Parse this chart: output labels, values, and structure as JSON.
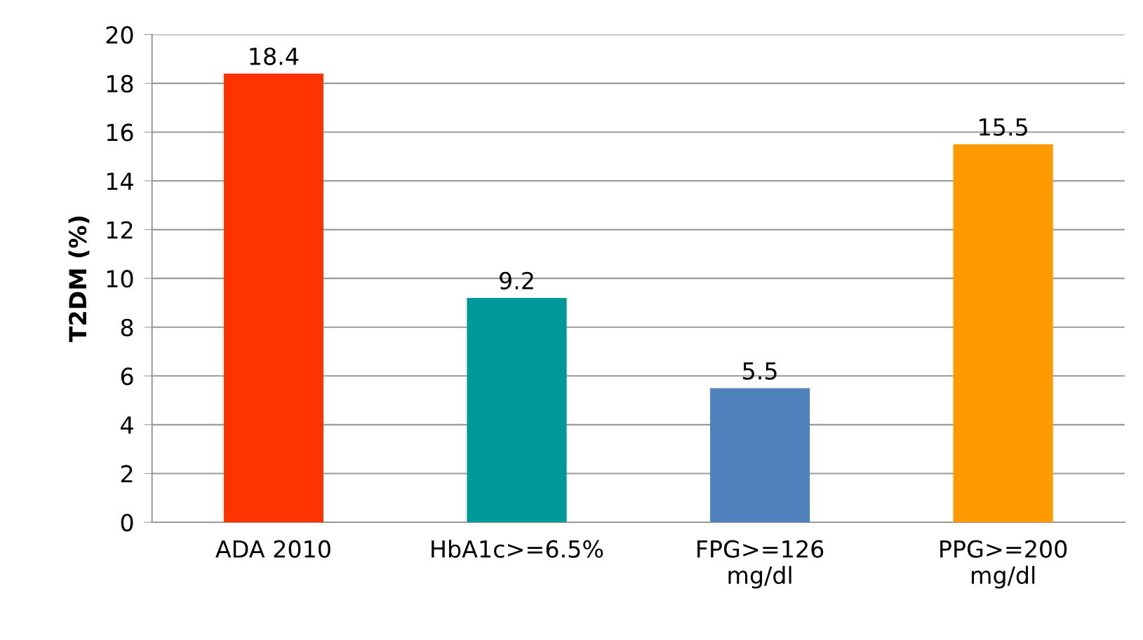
{
  "chart_data": {
    "type": "bar",
    "ylabel": "T2DM (%)",
    "categories": [
      "ADA 2010",
      "HbA1c>=6.5%",
      "FPG>=126\nmg/dl",
      "PPG>=200\nmg/dl"
    ],
    "values": [
      18.4,
      9.2,
      5.5,
      15.5
    ],
    "colors": [
      "#ff3300",
      "#009999",
      "#4f81bd",
      "#ff9900"
    ],
    "ylim": [
      0,
      20
    ],
    "yticks": [
      0,
      2,
      4,
      6,
      8,
      10,
      12,
      14,
      16,
      18,
      20
    ],
    "grid": "y",
    "data_labels": true
  }
}
